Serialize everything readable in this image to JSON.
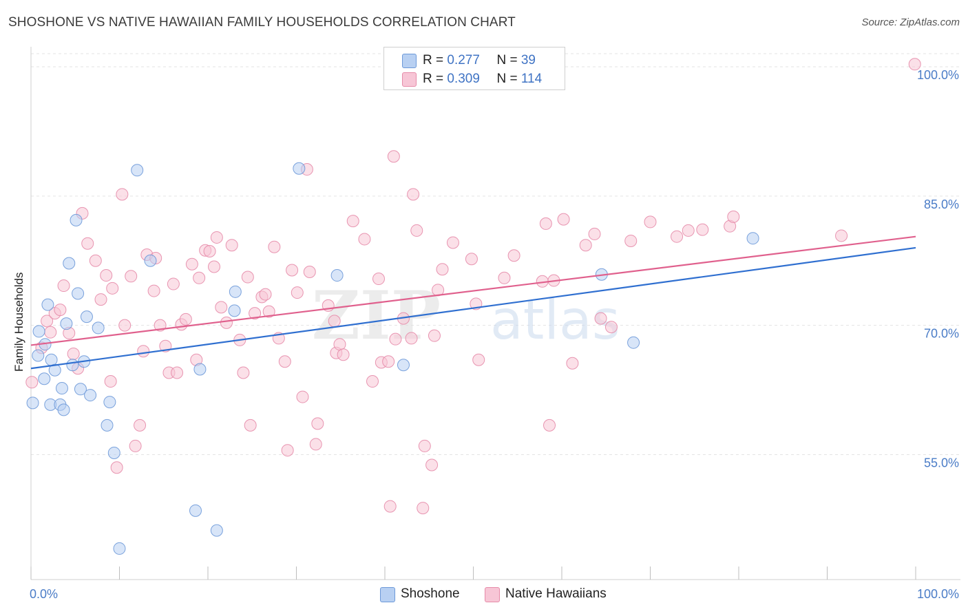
{
  "header": {
    "title": "SHOSHONE VS NATIVE HAWAIIAN FAMILY HOUSEHOLDS CORRELATION CHART",
    "source": "Source: ZipAtlas.com"
  },
  "watermark": {
    "part1": "ZIP",
    "part2": "atlas"
  },
  "legend": {
    "rows": [
      {
        "r_label": "R = ",
        "r_value": "0.277",
        "n_label": "N = ",
        "n_value": "39",
        "color": "#b8d0f2",
        "stroke": "#6b98d8"
      },
      {
        "r_label": "R = ",
        "r_value": "0.309",
        "n_label": "N = ",
        "n_value": "114",
        "color": "#f7c6d6",
        "stroke": "#e68aa8"
      }
    ]
  },
  "colors": {
    "shoshone_fill": "#b8d0f2",
    "shoshone_stroke": "#6b98d8",
    "shoshone_line": "#2f6fd0",
    "hawaiian_fill": "#f7c6d6",
    "hawaiian_stroke": "#e68aa8",
    "hawaiian_line": "#e0608d",
    "tick_label": "#4a7cc7",
    "grid": "#e3e3e3"
  },
  "chart_data": {
    "type": "scatter",
    "title": "SHOSHONE VS NATIVE HAWAIIAN FAMILY HOUSEHOLDS CORRELATION CHART",
    "xlabel": "",
    "ylabel": "Family Households",
    "xlim": [
      0,
      100
    ],
    "ylim": [
      40.5,
      102
    ],
    "x_tick_labels": [
      "0.0%",
      "100.0%"
    ],
    "y_ticks": [
      55,
      70,
      85,
      100
    ],
    "y_tick_labels": [
      "55.0%",
      "70.0%",
      "85.0%",
      "100.0%"
    ],
    "grid": true,
    "legend_position": "top-center",
    "series": [
      {
        "name": "Shoshone",
        "r": 0.277,
        "n": 39,
        "trend": {
          "x": [
            0,
            100
          ],
          "y": [
            65.0,
            79.0
          ]
        },
        "points": [
          [
            0.2,
            61.0
          ],
          [
            0.8,
            66.5
          ],
          [
            0.9,
            69.3
          ],
          [
            1.5,
            63.8
          ],
          [
            1.6,
            67.8
          ],
          [
            1.9,
            72.4
          ],
          [
            2.2,
            60.8
          ],
          [
            2.3,
            66.0
          ],
          [
            2.7,
            64.8
          ],
          [
            3.3,
            60.8
          ],
          [
            3.5,
            62.7
          ],
          [
            3.7,
            60.2
          ],
          [
            4.0,
            70.2
          ],
          [
            4.3,
            77.2
          ],
          [
            4.7,
            65.4
          ],
          [
            5.1,
            82.2
          ],
          [
            5.3,
            73.7
          ],
          [
            5.6,
            62.6
          ],
          [
            6.0,
            65.8
          ],
          [
            6.3,
            71.0
          ],
          [
            6.7,
            61.9
          ],
          [
            7.6,
            69.7
          ],
          [
            8.6,
            58.4
          ],
          [
            8.9,
            61.1
          ],
          [
            9.4,
            55.2
          ],
          [
            10.0,
            44.1
          ],
          [
            12.0,
            88.0
          ],
          [
            13.5,
            77.5
          ],
          [
            18.6,
            48.5
          ],
          [
            19.1,
            64.9
          ],
          [
            21.0,
            46.2
          ],
          [
            23.0,
            71.7
          ],
          [
            23.1,
            73.9
          ],
          [
            30.3,
            88.2
          ],
          [
            34.6,
            75.8
          ],
          [
            42.1,
            65.4
          ],
          [
            64.5,
            75.9
          ],
          [
            68.1,
            68.0
          ],
          [
            81.6,
            80.1
          ]
        ]
      },
      {
        "name": "Native Hawaiians",
        "r": 0.309,
        "n": 114,
        "trend": {
          "x": [
            0,
            100
          ],
          "y": [
            67.7,
            80.3
          ]
        },
        "points": [
          [
            0.1,
            63.4
          ],
          [
            1.2,
            67.4
          ],
          [
            1.8,
            70.5
          ],
          [
            2.2,
            69.2
          ],
          [
            2.7,
            71.4
          ],
          [
            3.3,
            71.8
          ],
          [
            3.7,
            74.6
          ],
          [
            4.3,
            69.1
          ],
          [
            4.8,
            66.7
          ],
          [
            5.3,
            65.0
          ],
          [
            5.8,
            83.0
          ],
          [
            6.4,
            79.5
          ],
          [
            7.3,
            77.5
          ],
          [
            7.9,
            73.0
          ],
          [
            8.5,
            75.8
          ],
          [
            9.0,
            63.5
          ],
          [
            9.2,
            74.3
          ],
          [
            9.7,
            53.5
          ],
          [
            10.3,
            85.2
          ],
          [
            10.6,
            70.0
          ],
          [
            11.3,
            75.7
          ],
          [
            11.8,
            56.0
          ],
          [
            12.3,
            58.4
          ],
          [
            12.7,
            67.0
          ],
          [
            13.1,
            78.2
          ],
          [
            13.9,
            74.0
          ],
          [
            14.1,
            77.8
          ],
          [
            14.6,
            70.0
          ],
          [
            15.2,
            67.6
          ],
          [
            15.6,
            64.5
          ],
          [
            16.1,
            74.8
          ],
          [
            16.5,
            64.5
          ],
          [
            17.0,
            70.1
          ],
          [
            17.5,
            70.7
          ],
          [
            18.2,
            77.1
          ],
          [
            18.7,
            66.0
          ],
          [
            19.0,
            75.5
          ],
          [
            19.7,
            78.7
          ],
          [
            20.2,
            78.6
          ],
          [
            20.7,
            76.8
          ],
          [
            21.0,
            80.2
          ],
          [
            21.5,
            72.1
          ],
          [
            22.1,
            70.3
          ],
          [
            22.7,
            79.3
          ],
          [
            23.6,
            68.3
          ],
          [
            24.0,
            64.5
          ],
          [
            24.5,
            75.6
          ],
          [
            24.8,
            58.4
          ],
          [
            25.3,
            71.4
          ],
          [
            26.1,
            73.3
          ],
          [
            26.5,
            73.6
          ],
          [
            26.9,
            71.6
          ],
          [
            27.5,
            79.1
          ],
          [
            28.0,
            68.5
          ],
          [
            28.7,
            65.8
          ],
          [
            29.0,
            55.5
          ],
          [
            29.5,
            76.4
          ],
          [
            30.1,
            73.8
          ],
          [
            30.7,
            61.7
          ],
          [
            31.2,
            88.1
          ],
          [
            31.5,
            76.2
          ],
          [
            32.2,
            56.2
          ],
          [
            32.4,
            58.6
          ],
          [
            33.6,
            72.3
          ],
          [
            34.3,
            70.5
          ],
          [
            34.5,
            66.8
          ],
          [
            34.9,
            67.8
          ],
          [
            35.3,
            66.6
          ],
          [
            36.4,
            82.1
          ],
          [
            37.7,
            80.0
          ],
          [
            38.6,
            63.5
          ],
          [
            39.3,
            75.4
          ],
          [
            39.6,
            65.7
          ],
          [
            40.4,
            65.8
          ],
          [
            40.6,
            49.0
          ],
          [
            41.0,
            89.6
          ],
          [
            41.2,
            68.4
          ],
          [
            42.1,
            70.8
          ],
          [
            43.0,
            68.5
          ],
          [
            43.2,
            85.2
          ],
          [
            43.6,
            81.0
          ],
          [
            44.3,
            48.8
          ],
          [
            44.5,
            56.0
          ],
          [
            45.3,
            53.8
          ],
          [
            45.6,
            68.8
          ],
          [
            46.0,
            74.1
          ],
          [
            46.5,
            76.5
          ],
          [
            47.7,
            79.6
          ],
          [
            49.8,
            77.7
          ],
          [
            50.3,
            72.5
          ],
          [
            50.6,
            66.0
          ],
          [
            53.5,
            75.5
          ],
          [
            54.6,
            78.1
          ],
          [
            57.8,
            75.1
          ],
          [
            58.2,
            81.8
          ],
          [
            58.6,
            58.4
          ],
          [
            59.1,
            75.2
          ],
          [
            60.2,
            82.3
          ],
          [
            61.2,
            65.6
          ],
          [
            62.7,
            79.3
          ],
          [
            63.7,
            80.6
          ],
          [
            64.4,
            70.8
          ],
          [
            65.6,
            69.8
          ],
          [
            67.8,
            79.8
          ],
          [
            70.0,
            82.0
          ],
          [
            73.0,
            80.3
          ],
          [
            74.3,
            81.0
          ],
          [
            75.9,
            81.1
          ],
          [
            79.0,
            81.5
          ],
          [
            79.4,
            82.6
          ],
          [
            91.6,
            80.4
          ],
          [
            99.9,
            100.3
          ]
        ]
      }
    ]
  }
}
